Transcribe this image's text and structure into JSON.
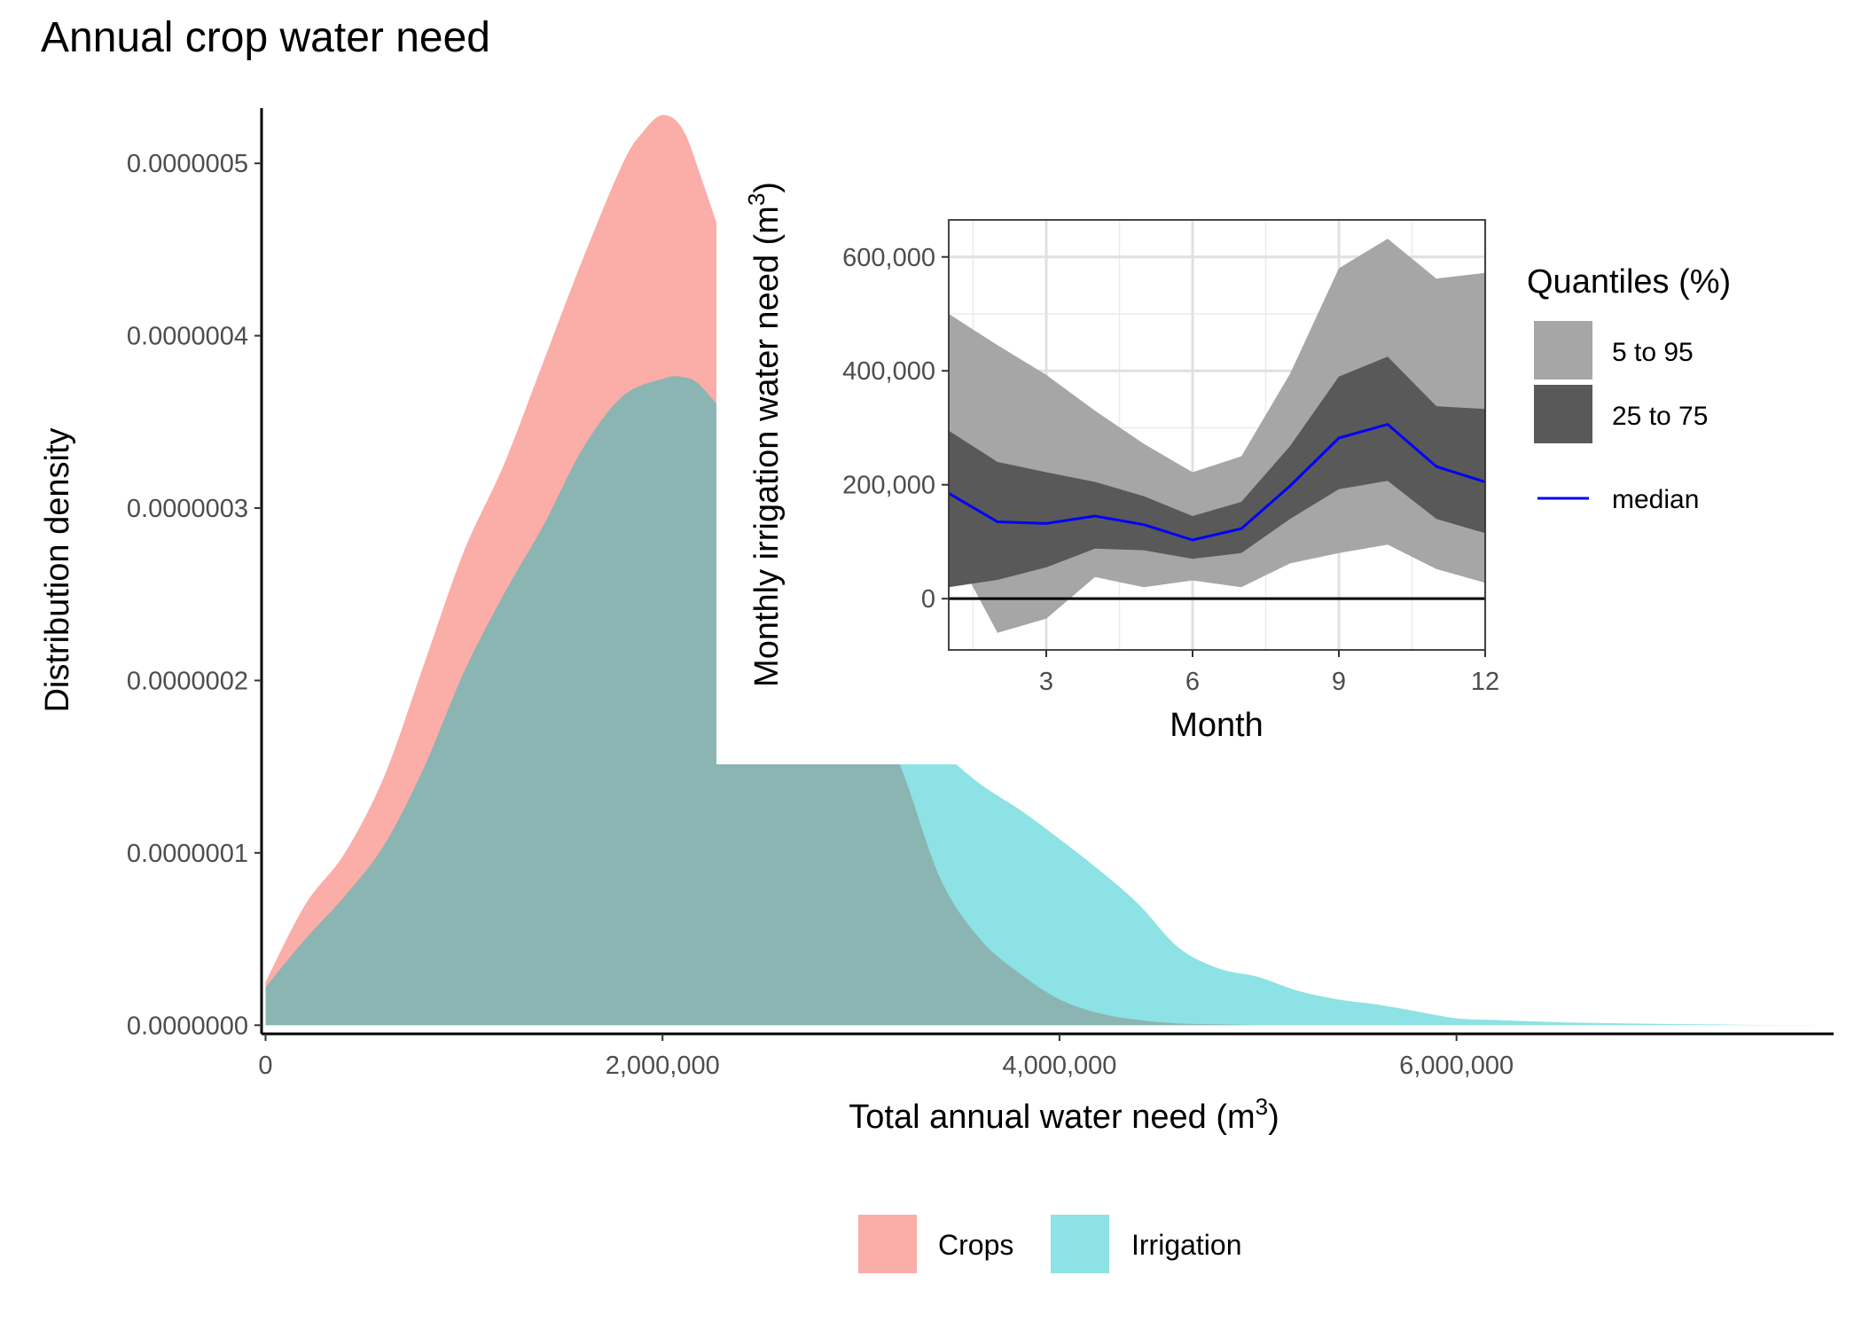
{
  "chart_data": [
    {
      "type": "area",
      "title": "Annual crop water need",
      "xlabel": "Total annual water need (m",
      "xlabel_sup": "3",
      "xlabel_close": ")",
      "ylabel": "Distribution density",
      "xlim": [
        -20000,
        7900000
      ],
      "ylim": [
        -5e-09,
        5.32e-07
      ],
      "x_ticks": [
        0,
        2000000,
        4000000,
        6000000
      ],
      "x_tick_labels": [
        "0",
        "2,000,000",
        "4,000,000",
        "6,000,000"
      ],
      "y_ticks": [
        0,
        1e-07,
        2e-07,
        3e-07,
        4e-07,
        5e-07
      ],
      "y_tick_labels": [
        "0.0000000",
        "0.0000001",
        "0.0000002",
        "0.0000003",
        "0.0000004",
        "0.0000005"
      ],
      "legend_position": "bottom",
      "grid": false,
      "series": [
        {
          "name": "Crops",
          "color": "#F8766D",
          "opacity": 0.6,
          "x": [
            0,
            200000,
            400000,
            600000,
            800000,
            1000000,
            1200000,
            1400000,
            1600000,
            1800000,
            1900000,
            2000000,
            2100000,
            2200000,
            2400000,
            2600000,
            2800000,
            3000000,
            3200000,
            3400000,
            3600000,
            3800000,
            4000000,
            4200000,
            4400000,
            4600000,
            4800000,
            5000000
          ],
          "values": [
            2.5e-08,
            7e-08,
            1e-07,
            1.45e-07,
            2.1e-07,
            2.75e-07,
            3.25e-07,
            3.85e-07,
            4.45e-07,
            5e-07,
            5.18e-07,
            5.28e-07,
            5.2e-07,
            4.9e-07,
            4.2e-07,
            3.45e-07,
            2.7e-07,
            2e-07,
            1.5e-07,
            8.5e-08,
            5e-08,
            3e-08,
            1.5e-08,
            7e-09,
            3e-09,
            1e-09,
            5e-10,
            0
          ]
        },
        {
          "name": "Irrigation",
          "color": "#00BFC4",
          "opacity": 0.45,
          "x": [
            0,
            200000,
            400000,
            600000,
            800000,
            1000000,
            1200000,
            1400000,
            1600000,
            1800000,
            2000000,
            2100000,
            2200000,
            2400000,
            2600000,
            2800000,
            3000000,
            3200000,
            3400000,
            3600000,
            3800000,
            4000000,
            4200000,
            4400000,
            4600000,
            4800000,
            5000000,
            5200000,
            5400000,
            5600000,
            5800000,
            6000000,
            6200000,
            6600000,
            7000000,
            7400000,
            7900000
          ],
          "values": [
            2.2e-08,
            5e-08,
            7.5e-08,
            1.05e-07,
            1.5e-07,
            2.05e-07,
            2.5e-07,
            2.9e-07,
            3.35e-07,
            3.65e-07,
            3.75e-07,
            3.76e-07,
            3.7e-07,
            3.4e-07,
            3e-07,
            2.6e-07,
            2.2e-07,
            1.85e-07,
            1.6e-07,
            1.4e-07,
            1.25e-07,
            1.08e-07,
            9e-08,
            7e-08,
            4.5e-08,
            3.3e-08,
            2.8e-08,
            2e-08,
            1.5e-08,
            1.2e-08,
            8e-09,
            4e-09,
            3e-09,
            1.5e-09,
            8e-10,
            3e-10,
            0
          ]
        }
      ]
    },
    {
      "type": "area",
      "title": "",
      "xlabel": "Month",
      "ylabel": "Monthly irrigation water need (m",
      "ylabel_sup": "3",
      "ylabel_close": ")",
      "xlim": [
        1,
        12
      ],
      "ylim": [
        -90000,
        665000
      ],
      "x_ticks": [
        3,
        6,
        9,
        12
      ],
      "x_tick_labels": [
        "3",
        "6",
        "9",
        "12"
      ],
      "y_ticks": [
        0,
        200000,
        400000,
        600000
      ],
      "y_tick_labels": [
        "0",
        "200,000",
        "400,000",
        "600,000"
      ],
      "grid": true,
      "legend_title": "Quantiles (%)",
      "legend_position": "right",
      "x": [
        1,
        2,
        3,
        4,
        5,
        6,
        7,
        8,
        9,
        10,
        11,
        12
      ],
      "series": [
        {
          "name": "5 to 95",
          "color": "#A6A6A6",
          "lower": [
            100000,
            -60000,
            -35000,
            38000,
            20000,
            32000,
            20000,
            62000,
            80000,
            95000,
            52000,
            28000
          ],
          "upper": [
            500000,
            445000,
            393000,
            330000,
            272000,
            222000,
            250000,
            395000,
            580000,
            632000,
            562000,
            572000
          ]
        },
        {
          "name": "25 to 75",
          "color": "#595959",
          "lower": [
            20000,
            33000,
            55000,
            88000,
            85000,
            70000,
            80000,
            140000,
            192000,
            207000,
            140000,
            115000
          ],
          "upper": [
            295000,
            240000,
            222000,
            205000,
            180000,
            145000,
            170000,
            268000,
            390000,
            425000,
            338000,
            333000
          ]
        },
        {
          "name": "median",
          "color": "#0000FF",
          "values": [
            185000,
            135000,
            132000,
            145000,
            130000,
            103000,
            123000,
            198000,
            282000,
            306000,
            232000,
            205000
          ]
        }
      ]
    }
  ],
  "legend": {
    "items": [
      {
        "label": "Crops",
        "color": "#F8766D"
      },
      {
        "label": "Irrigation",
        "color": "#00BFC4"
      }
    ]
  }
}
